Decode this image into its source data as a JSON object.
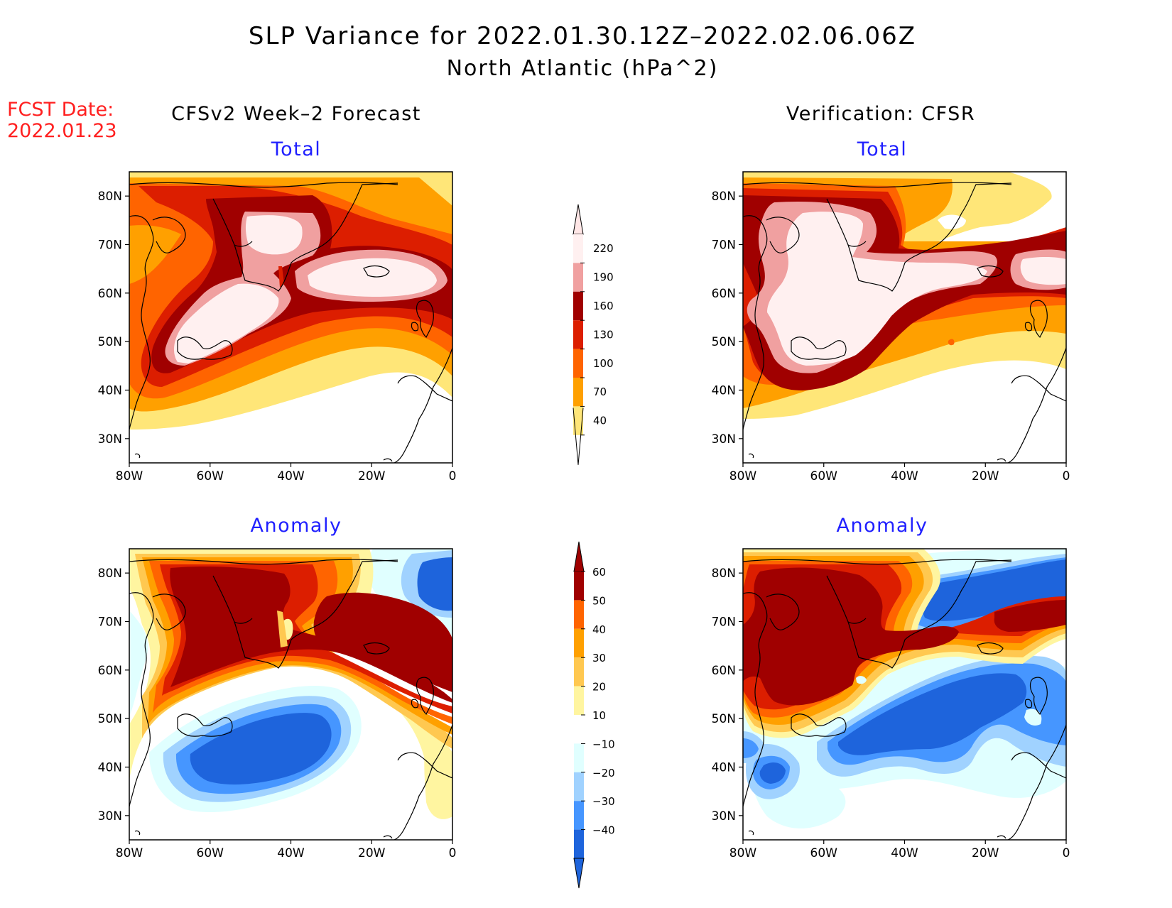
{
  "title": {
    "line1": "SLP Variance for 2022.01.30.12Z–2022.02.06.06Z",
    "line2": "North Atlantic (hPa^2)"
  },
  "fcst_label": {
    "line1": "FCST Date:",
    "line2": "2022.01.23"
  },
  "columns": {
    "left": "CFSv2 Week–2 Forecast",
    "right": "Verification: CFSR"
  },
  "panels": {
    "total_label": "Total",
    "anomaly_label": "Anomaly"
  },
  "axes": {
    "lat_ticks": [
      "80N",
      "70N",
      "60N",
      "50N",
      "40N",
      "30N"
    ],
    "lon_ticks": [
      "80W",
      "60W",
      "40W",
      "20W",
      "0"
    ]
  },
  "legend_total": {
    "labels": [
      "220",
      "190",
      "160",
      "130",
      "100",
      "70",
      "40"
    ],
    "colors": [
      "#fff0f0",
      "#f0a0a0",
      "#a00000",
      "#dc1e00",
      "#ff6400",
      "#ffa000",
      "#ffe678"
    ],
    "top_color": "#ffe6e6"
  },
  "legend_anomaly": {
    "labels": [
      "60",
      "50",
      "40",
      "30",
      "20",
      "10",
      "−10",
      "−20",
      "−30",
      "−40"
    ],
    "colors": [
      "#a00000",
      "#dc1e00",
      "#ff6400",
      "#ffa000",
      "#ffc850",
      "#fff5a0",
      "#ffffff",
      "#e0ffff",
      "#a0d2ff",
      "#4696ff",
      "#1e64dc"
    ],
    "top_color": "#a00000",
    "bottom_color": "#1e64dc"
  },
  "colors": {
    "title_text": "#000000",
    "fcst_text": "#ff2020",
    "panel_label": "#2020ff"
  }
}
